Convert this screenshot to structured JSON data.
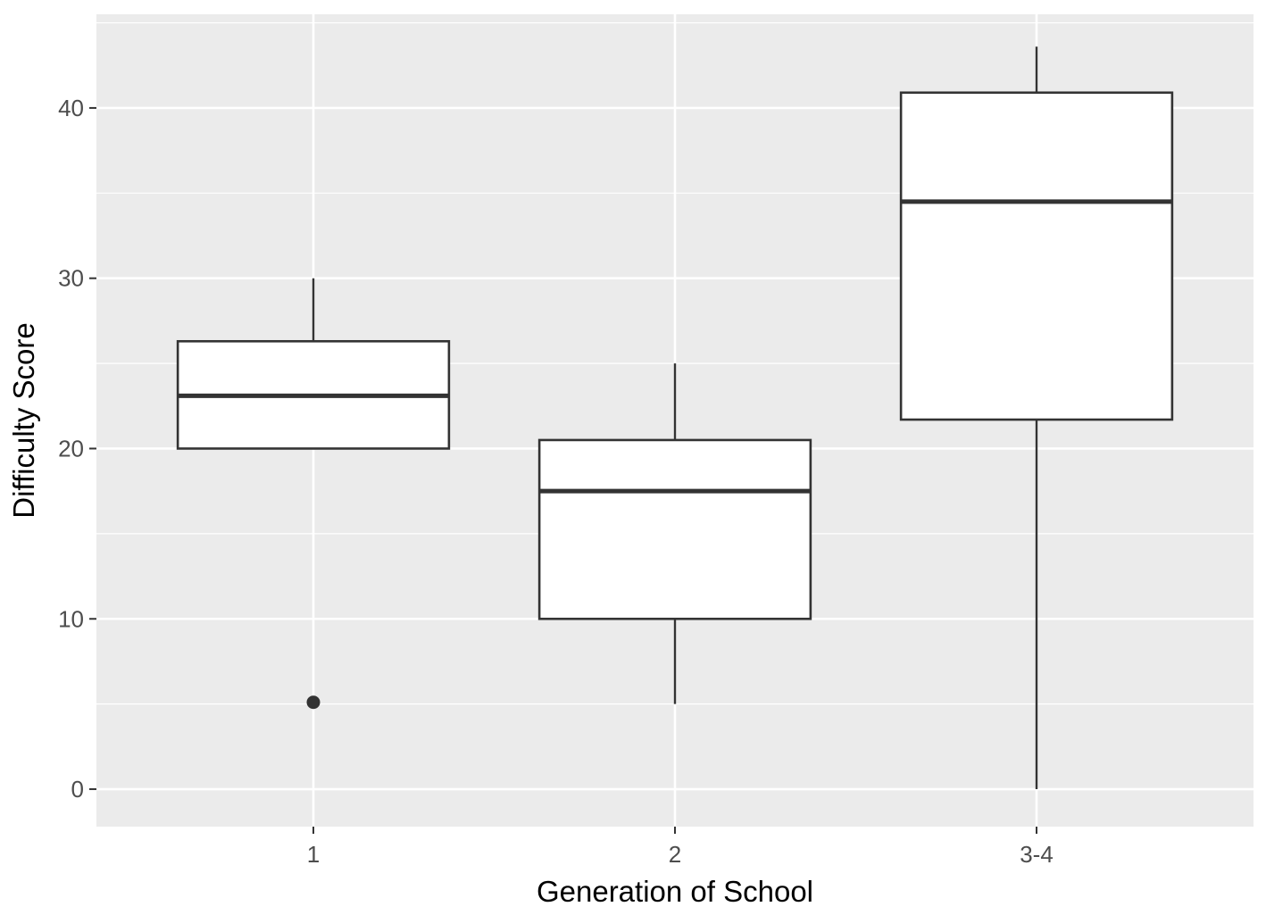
{
  "chart_data": {
    "type": "boxplot",
    "title": "",
    "xlabel": "Generation of School",
    "ylabel": "Difficulty Score",
    "categories": [
      "1",
      "2",
      "3-4"
    ],
    "y_ticks": [
      0,
      10,
      20,
      30,
      40
    ],
    "ylim": [
      -2.2,
      45.5
    ],
    "grid": true,
    "colors": {
      "panel_background": "#ebebeb",
      "grid": "#ffffff",
      "box_fill": "#ffffff",
      "box_stroke": "#333333",
      "outlier": "#333333"
    },
    "boxes": [
      {
        "category": "1",
        "lower_whisker": 20,
        "q1": 20,
        "median": 23.1,
        "q3": 26.3,
        "upper_whisker": 30,
        "outliers": [
          5.1
        ]
      },
      {
        "category": "2",
        "lower_whisker": 5,
        "q1": 10,
        "median": 17.5,
        "q3": 20.5,
        "upper_whisker": 25,
        "outliers": []
      },
      {
        "category": "3-4",
        "lower_whisker": 0,
        "q1": 21.7,
        "median": 34.5,
        "q3": 40.9,
        "upper_whisker": 43.6,
        "outliers": []
      }
    ]
  }
}
